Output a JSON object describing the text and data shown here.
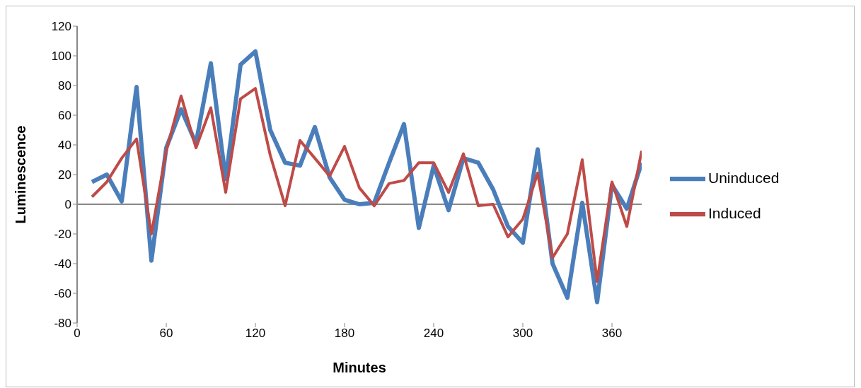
{
  "chart_data": {
    "type": "line",
    "xlabel": "Minutes",
    "ylabel": "Luminescence",
    "x": [
      10,
      20,
      30,
      40,
      50,
      60,
      70,
      80,
      90,
      100,
      110,
      120,
      130,
      140,
      150,
      160,
      170,
      180,
      190,
      200,
      210,
      220,
      230,
      240,
      250,
      260,
      270,
      280,
      290,
      300,
      310,
      320,
      330,
      340,
      350,
      360,
      370,
      380
    ],
    "series": [
      {
        "name": "Uninduced",
        "color": "#4a7ebb",
        "values": [
          15,
          20,
          2,
          79,
          -38,
          38,
          64,
          41,
          95,
          17,
          94,
          103,
          50,
          28,
          26,
          52,
          18,
          3,
          0,
          1,
          28,
          54,
          -16,
          26,
          -4,
          31,
          28,
          10,
          -15,
          -26,
          37,
          -40,
          -63,
          1,
          -66,
          13,
          -3,
          28
        ]
      },
      {
        "name": "Induced",
        "color": "#be4b48",
        "values": [
          5,
          15,
          31,
          44,
          -20,
          36,
          73,
          38,
          65,
          8,
          71,
          78,
          33,
          -1,
          43,
          31,
          19,
          39,
          11,
          -1,
          14,
          16,
          28,
          28,
          8,
          34,
          -1,
          0,
          -22,
          -10,
          21,
          -36,
          -20,
          30,
          -52,
          15,
          -15,
          36
        ]
      }
    ],
    "xlim": [
      0,
      380
    ],
    "xticks": [
      0,
      60,
      120,
      180,
      240,
      300,
      360
    ],
    "ylim": [
      -80,
      120
    ],
    "yticks": [
      -80,
      -60,
      -40,
      -20,
      0,
      20,
      40,
      60,
      80,
      100,
      120
    ],
    "ref_lines": [
      {
        "axis": "y",
        "value": 0,
        "color": "#888888"
      }
    ],
    "grid": false,
    "legend": "right",
    "marker": "none",
    "line_style": "solid"
  }
}
